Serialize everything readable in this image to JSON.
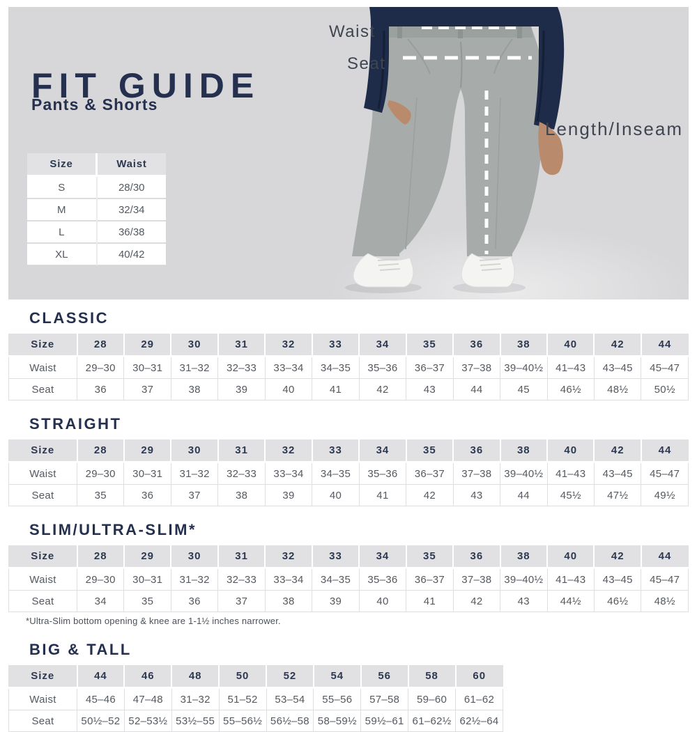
{
  "hero": {
    "title": "FIT GUIDE",
    "subtitle": "Pants & Shorts",
    "size_table": {
      "headers": [
        "Size",
        "Waist"
      ],
      "rows": [
        [
          "S",
          "28/30"
        ],
        [
          "M",
          "32/34"
        ],
        [
          "L",
          "36/38"
        ],
        [
          "XL",
          "40/42"
        ]
      ]
    },
    "annotations": {
      "waist": "Waist",
      "seat": "Seat",
      "inseam": "Length/Inseam"
    },
    "illustration": "man-wearing-gray-pants-with-measurement-lines"
  },
  "sections": [
    {
      "title": "CLASSIC",
      "headers": [
        "Size",
        "28",
        "29",
        "30",
        "31",
        "32",
        "33",
        "34",
        "35",
        "36",
        "38",
        "40",
        "42",
        "44"
      ],
      "rows": [
        [
          "Waist",
          "29–30",
          "30–31",
          "31–32",
          "32–33",
          "33–34",
          "34–35",
          "35–36",
          "36–37",
          "37–38",
          "39–40½",
          "41–43",
          "43–45",
          "45–47"
        ],
        [
          "Seat",
          "36",
          "37",
          "38",
          "39",
          "40",
          "41",
          "42",
          "43",
          "44",
          "45",
          "46½",
          "48½",
          "50½"
        ]
      ]
    },
    {
      "title": "STRAIGHT",
      "headers": [
        "Size",
        "28",
        "29",
        "30",
        "31",
        "32",
        "33",
        "34",
        "35",
        "36",
        "38",
        "40",
        "42",
        "44"
      ],
      "rows": [
        [
          "Waist",
          "29–30",
          "30–31",
          "31–32",
          "32–33",
          "33–34",
          "34–35",
          "35–36",
          "36–37",
          "37–38",
          "39–40½",
          "41–43",
          "43–45",
          "45–47"
        ],
        [
          "Seat",
          "35",
          "36",
          "37",
          "38",
          "39",
          "40",
          "41",
          "42",
          "43",
          "44",
          "45½",
          "47½",
          "49½"
        ]
      ]
    },
    {
      "title": "SLIM/ULTRA-SLIM*",
      "headers": [
        "Size",
        "28",
        "29",
        "30",
        "31",
        "32",
        "33",
        "34",
        "35",
        "36",
        "38",
        "40",
        "42",
        "44"
      ],
      "rows": [
        [
          "Waist",
          "29–30",
          "30–31",
          "31–32",
          "32–33",
          "33–34",
          "34–35",
          "35–36",
          "36–37",
          "37–38",
          "39–40½",
          "41–43",
          "43–45",
          "45–47"
        ],
        [
          "Seat",
          "34",
          "35",
          "36",
          "37",
          "38",
          "39",
          "40",
          "41",
          "42",
          "43",
          "44½",
          "46½",
          "48½"
        ]
      ],
      "footnote": "*Ultra-Slim bottom opening & knee are 1-1½ inches narrower."
    },
    {
      "title": "BIG & TALL",
      "headers": [
        "Size",
        "44",
        "46",
        "48",
        "50",
        "52",
        "54",
        "56",
        "58",
        "60"
      ],
      "rows": [
        [
          "Waist",
          "45–46",
          "47–48",
          "31–32",
          "51–52",
          "53–54",
          "55–56",
          "57–58",
          "59–60",
          "61–62"
        ],
        [
          "Seat",
          "50½–52",
          "52–53½",
          "53½–55",
          "55–56½",
          "56½–58",
          "58–59½",
          "59½–61",
          "61–62½",
          "62½–64"
        ]
      ]
    }
  ],
  "colors": {
    "heading_navy": "#24304e",
    "hero_background": "#d7d7d9",
    "table_header_background": "#e1e1e3",
    "table_body_text": "#54595f",
    "shirt_navy": "#1e2b49",
    "pants_gray": "#a7acab",
    "skin": "#b98a6b",
    "dashed_measure_line": "#ffffff"
  }
}
